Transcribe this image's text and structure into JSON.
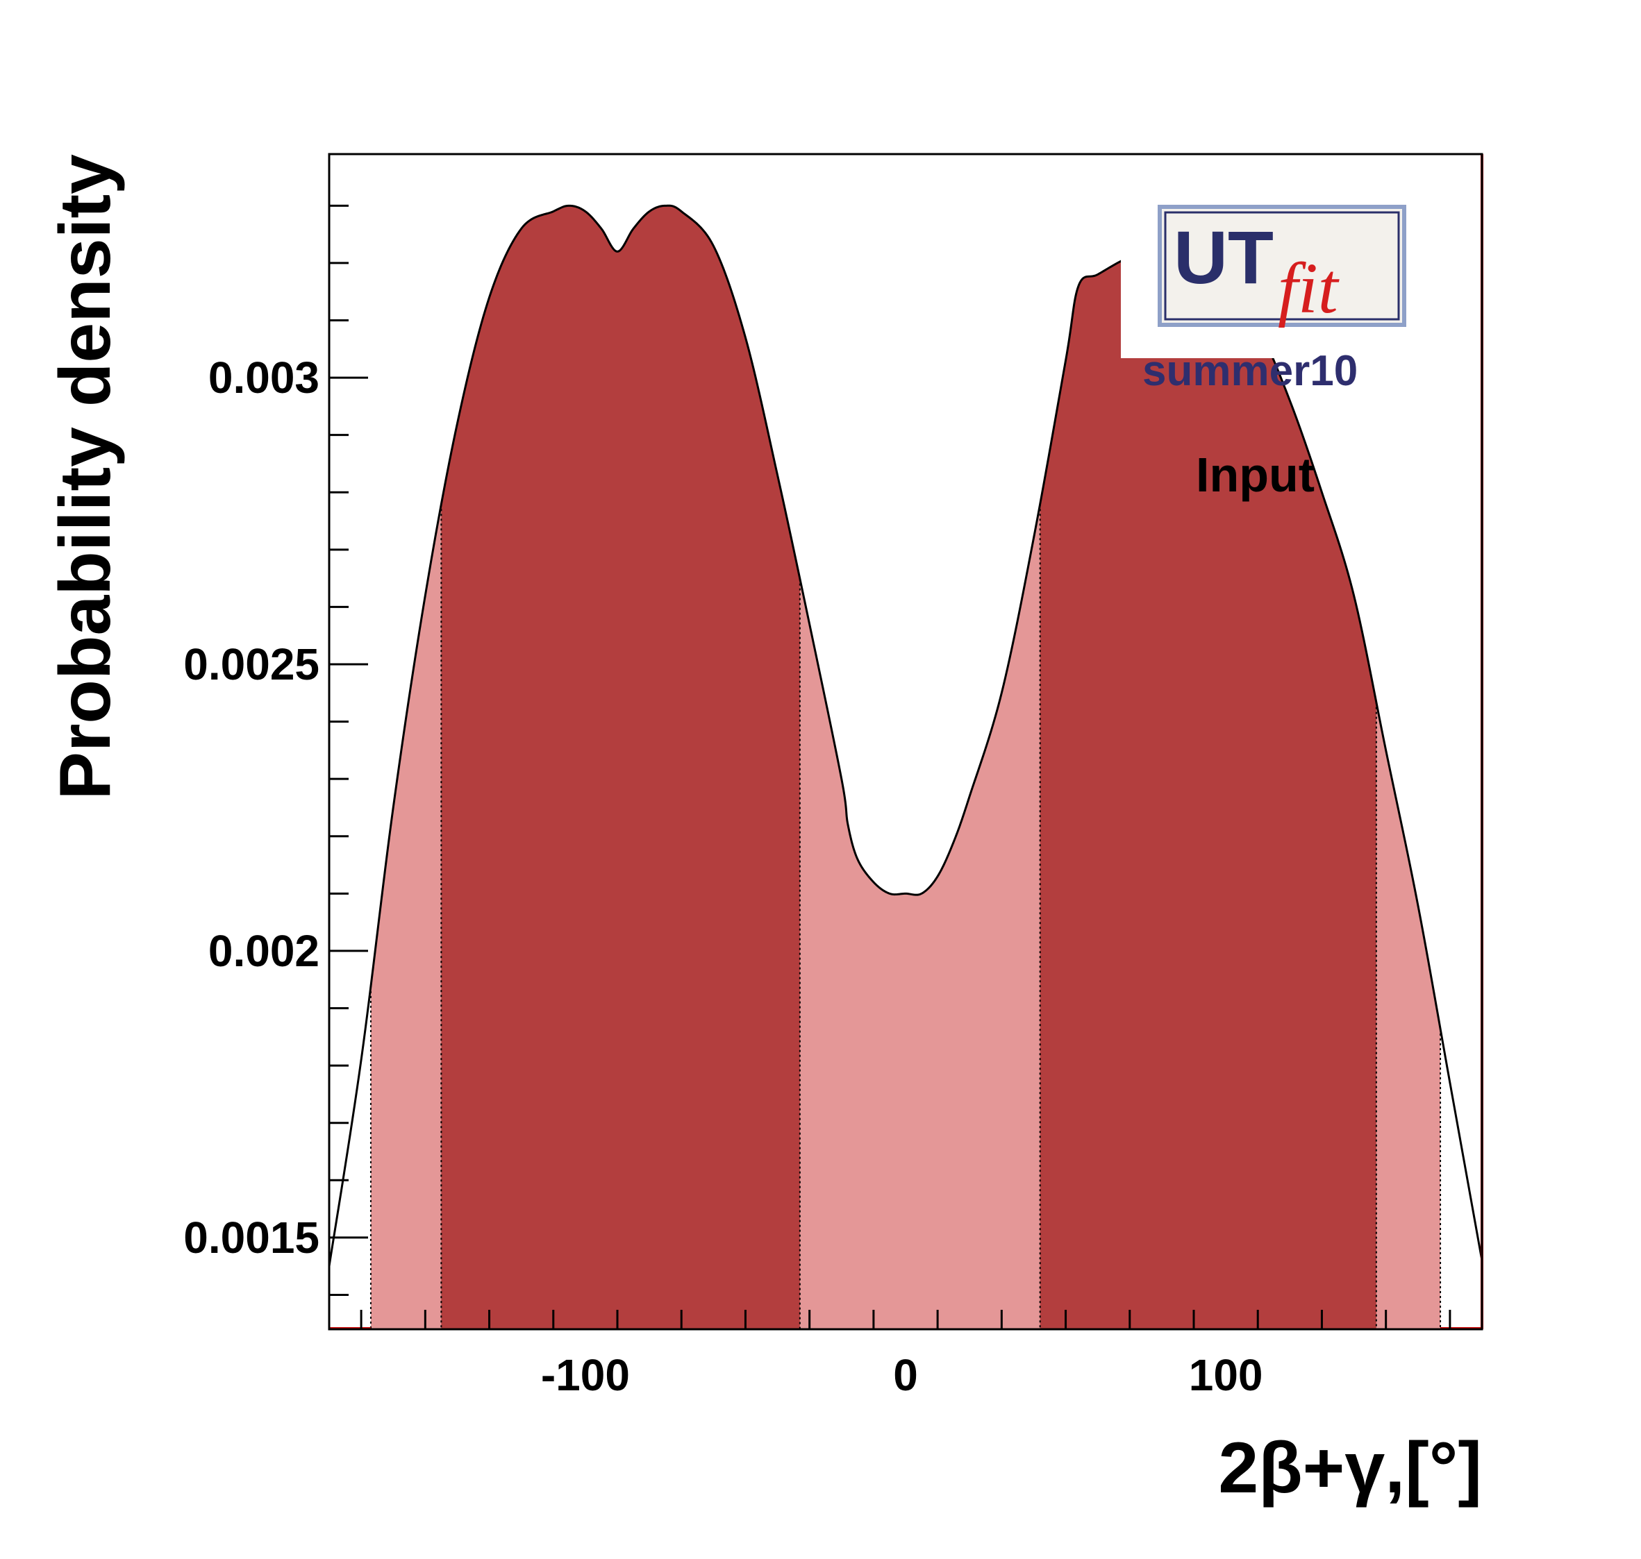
{
  "chart_data": {
    "type": "area",
    "xlabel": "2β+γ,[°]",
    "ylabel": "Probability density",
    "xlim": [
      -180,
      180
    ],
    "ylim": [
      0.00134,
      0.00339
    ],
    "x_ticks": [
      -100,
      0,
      100
    ],
    "x_tick_labels": [
      "-100",
      "0",
      "100"
    ],
    "y_ticks": [
      0.0015,
      0.002,
      0.0025,
      0.003
    ],
    "y_tick_labels": [
      "0.0015",
      "0.002",
      "0.0025",
      "0.003"
    ],
    "series": [
      {
        "x": [
          -180,
          -170,
          -160,
          -150,
          -140,
          -130,
          -120,
          -110,
          -105,
          -100,
          -95,
          -90,
          -85,
          -80,
          -75,
          -70,
          -60,
          -50,
          -40,
          -30,
          -20,
          -18,
          -15,
          -10,
          -5,
          0,
          5,
          10,
          15,
          20,
          30,
          40,
          50,
          54,
          60,
          70,
          80,
          90,
          100,
          110,
          120,
          130,
          140,
          150,
          160,
          170,
          180
        ],
        "y": [
          0.00145,
          0.00181,
          0.00225,
          0.00262,
          0.00292,
          0.00314,
          0.00326,
          0.00329,
          0.0033,
          0.00329,
          0.00326,
          0.00322,
          0.00326,
          0.00329,
          0.0033,
          0.00329,
          0.00323,
          0.00307,
          0.00283,
          0.00257,
          0.0023,
          0.00222,
          0.00216,
          0.00212,
          0.0021,
          0.0021,
          0.0021,
          0.00213,
          0.00219,
          0.00227,
          0.00245,
          0.00272,
          0.00303,
          0.00316,
          0.00318,
          0.00321,
          0.00322,
          0.00321,
          0.00317,
          0.00309,
          0.00296,
          0.0028,
          0.00262,
          0.00235,
          0.00208,
          0.00177,
          0.00146
        ]
      }
    ],
    "intervals": {
      "inner_68": [
        [
          -145,
          -33
        ],
        [
          42,
          147
        ]
      ],
      "outer_95": [
        -167,
        167
      ]
    },
    "colors": {
      "inner_fill": "#b33e3e",
      "outer_fill": "#e49797",
      "curve": "#000000"
    },
    "annotations": {
      "logo_text": "UTfit",
      "edition": "summer10",
      "label": "Input"
    }
  }
}
